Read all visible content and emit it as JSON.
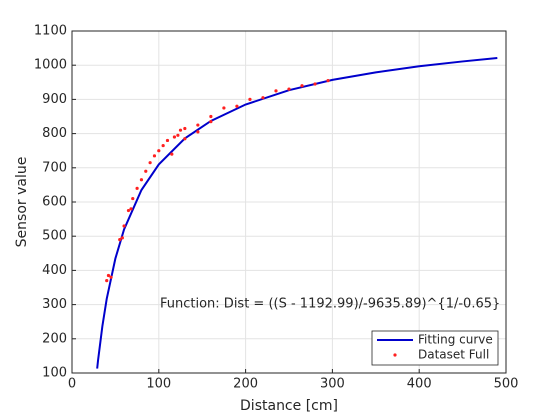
{
  "chart_data": {
    "type": "line",
    "xlabel": "Distance [cm]",
    "ylabel": "Sensor value",
    "annotation": "Function: Dist = ((S - 1192.99)/-9635.89)^{1/-0.65}",
    "xlim": [
      0,
      500
    ],
    "xticks": [
      0,
      100,
      200,
      300,
      400,
      500
    ],
    "ylim": [
      100,
      1100
    ],
    "yticks": [
      100,
      200,
      300,
      400,
      500,
      600,
      700,
      800,
      900,
      1000,
      1100
    ],
    "grid": true,
    "legend": "lower right",
    "series": [
      {
        "name": "Fitting curve",
        "type": "line",
        "color": "#0000cc",
        "x": [
          29,
          30,
          35,
          40,
          50,
          60,
          80,
          100,
          130,
          160,
          200,
          250,
          300,
          350,
          400,
          450,
          490
        ],
        "values": [
          113,
          137,
          237,
          317,
          435,
          520,
          635,
          710,
          786,
          837,
          885,
          927,
          957,
          979,
          997,
          1011,
          1021
        ]
      },
      {
        "name": "Dataset Full",
        "type": "scatter",
        "color": "#ff2020",
        "x": [
          40,
          42,
          45,
          55,
          58,
          60,
          65,
          68,
          70,
          75,
          80,
          85,
          90,
          95,
          100,
          105,
          110,
          115,
          118,
          122,
          125,
          130,
          130,
          145,
          145,
          160,
          160,
          175,
          190,
          205,
          220,
          235,
          250,
          265,
          280,
          295
        ],
        "values": [
          370,
          385,
          380,
          490,
          495,
          530,
          575,
          580,
          610,
          640,
          665,
          690,
          715,
          735,
          750,
          765,
          780,
          740,
          790,
          795,
          810,
          815,
          785,
          805,
          825,
          835,
          850,
          875,
          880,
          900,
          905,
          925,
          930,
          940,
          945,
          955
        ]
      }
    ]
  }
}
